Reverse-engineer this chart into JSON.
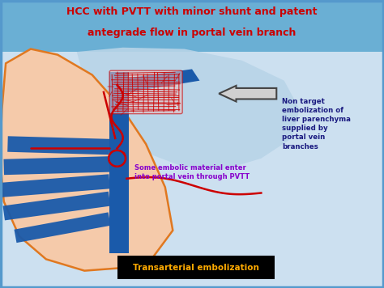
{
  "bg_color": "#cce0f0",
  "title_line1": "HCC with PVTT with minor shunt and patent",
  "title_line2": "antegrade flow in portal vein branch",
  "title_color": "#cc0000",
  "title_bg": "#6aafd4",
  "liver_left_color": "#f5caaa",
  "liver_left_edge": "#e07820",
  "liver_right_color": "#b8d4e8",
  "portal_vein_color": "#1a5aaa",
  "artery_color": "#cc0000",
  "annotation1_text": "Non target\nembolization of\nliver parenchyma\nsupplied by\nportal vein\nbranches",
  "annotation1_color": "#1a1a80",
  "annotation2_text": "Some embolic material enter\ninto portal vein through PVTT",
  "annotation2_color": "#8800cc",
  "label_box_text": "Transarterial embolization",
  "label_box_color": "#ffaa00",
  "label_box_bg": "#000000",
  "border_color": "#5599cc"
}
